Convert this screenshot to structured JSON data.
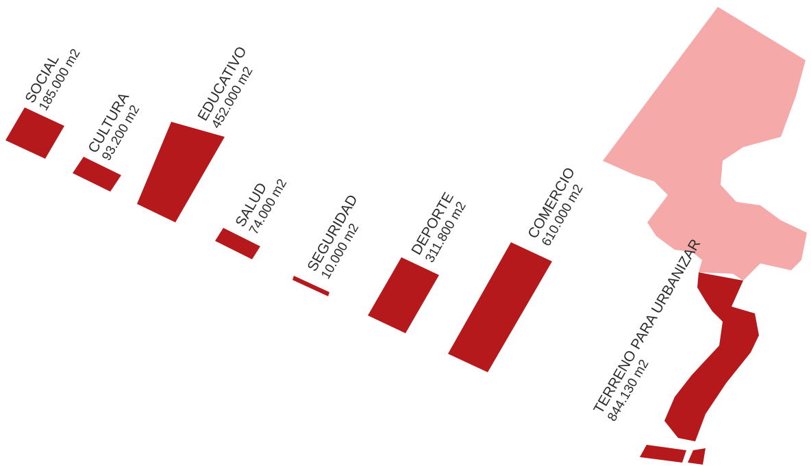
{
  "colors": {
    "block": "#b5191c",
    "parcel": "#f5a9a9",
    "text": "#2a2a2a",
    "background": "#ffffff"
  },
  "items": [
    {
      "category": "SOCIAL",
      "area": "185.000 m2"
    },
    {
      "category": "CULTURA",
      "area": "93.200 m2"
    },
    {
      "category": "EDUCATIVO",
      "area": "452.000 m2"
    },
    {
      "category": "SALUD",
      "area": "74.000 m2"
    },
    {
      "category": "SEGURIDAD",
      "area": "10.000 m2"
    },
    {
      "category": "DEPORTE",
      "area": "311.800 m2"
    },
    {
      "category": "COMERCIO",
      "area": "610.000 m2"
    },
    {
      "category": "TERRENO PARA URBANIZAR",
      "area": "844.130 m2"
    }
  ]
}
